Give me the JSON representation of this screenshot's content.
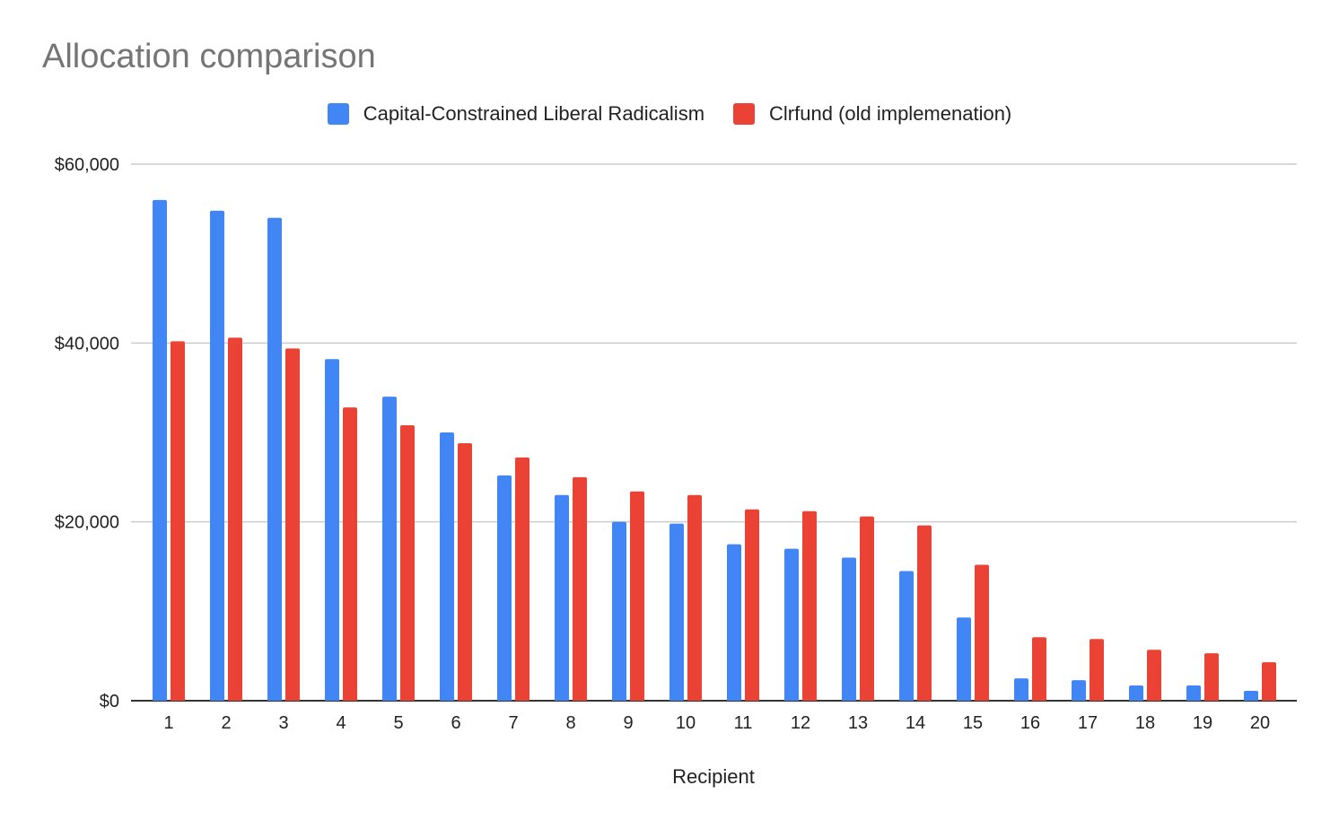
{
  "title": "Allocation comparison",
  "legend": {
    "series_a_name": "Capital-Constrained Liberal Radicalism",
    "series_b_name": "Clrfund (old implemenation)"
  },
  "colors": {
    "series_a": "#4285f4",
    "series_b": "#ea4335",
    "grid": "#cccccc",
    "axis": "#333333",
    "title": "#757575"
  },
  "chart_data": {
    "type": "bar",
    "title": "Allocation comparison",
    "xlabel": "Recipient",
    "ylabel": "",
    "ylim": [
      0,
      60000
    ],
    "yticks": [
      0,
      20000,
      40000,
      60000
    ],
    "ytick_labels": [
      "$0",
      "$20,000",
      "$40,000",
      "$60,000"
    ],
    "grid": true,
    "legend_position": "top",
    "categories": [
      "1",
      "2",
      "3",
      "4",
      "5",
      "6",
      "7",
      "8",
      "9",
      "10",
      "11",
      "12",
      "13",
      "14",
      "15",
      "16",
      "17",
      "18",
      "19",
      "20"
    ],
    "series": [
      {
        "name": "Capital-Constrained Liberal Radicalism",
        "color": "#4285f4",
        "values": [
          56000,
          54800,
          54000,
          38200,
          34000,
          30000,
          25200,
          23000,
          20000,
          19800,
          17500,
          17000,
          16000,
          14500,
          9300,
          2500,
          2300,
          1700,
          1700,
          1100
        ]
      },
      {
        "name": "Clrfund (old implemenation)",
        "color": "#ea4335",
        "values": [
          40200,
          40600,
          39400,
          32800,
          30800,
          28800,
          27200,
          25000,
          23400,
          23000,
          21400,
          21200,
          20600,
          19600,
          15200,
          7100,
          6900,
          5700,
          5300,
          4300
        ]
      }
    ]
  }
}
